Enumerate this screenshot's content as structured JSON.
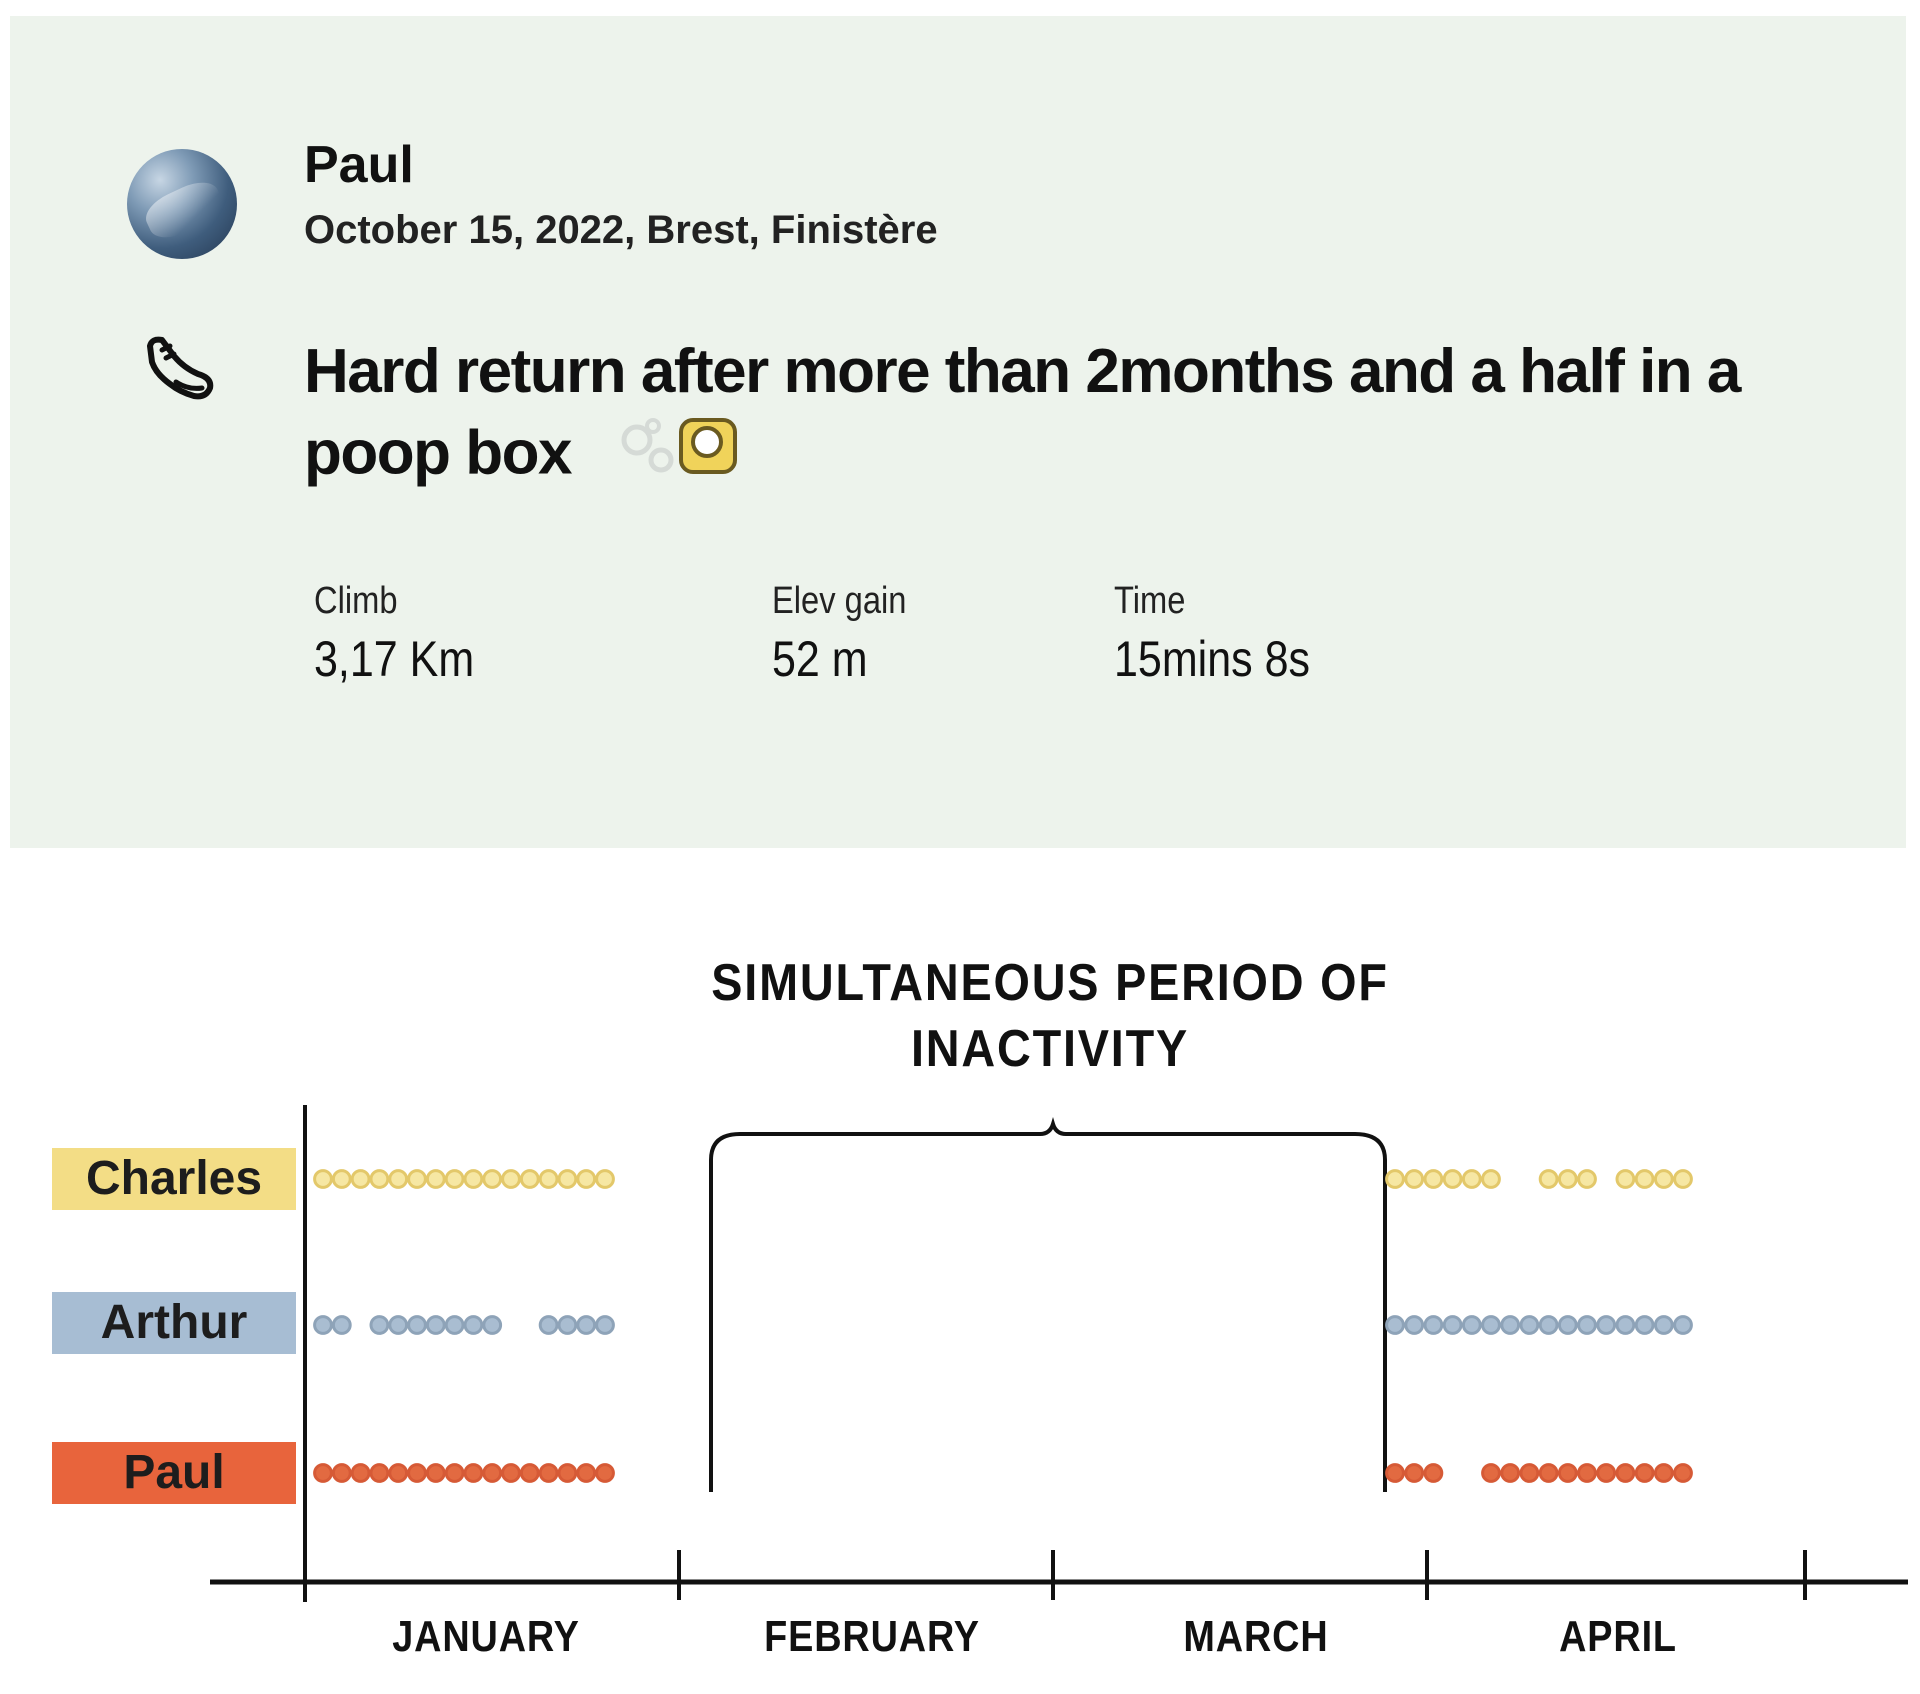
{
  "post": {
    "user_name": "Paul",
    "meta": "October 15, 2022, Brest, Finistère",
    "activity_icon": "running-shoe-icon",
    "title": "Hard return after more than 2months and a half in a poop box",
    "stats": [
      {
        "label": "Climb",
        "value": "3,17 Km"
      },
      {
        "label": "Elev gain",
        "value": "52 m"
      },
      {
        "label": "Time",
        "value": "15mins 8s"
      }
    ]
  },
  "chart_data": {
    "type": "timeline",
    "title": "SIMULTANEOUS PERIOD OF INACTIVITY",
    "categories": [
      "JANUARY",
      "FEBRUARY",
      "MARCH",
      "APRIL"
    ],
    "series": [
      {
        "name": "Charles",
        "color": "#e3c86a",
        "fill": "#f6e7a3",
        "runs": [
          [
            0,
            15
          ],
          [
            16,
            21
          ],
          [
            24,
            26
          ],
          [
            28,
            31
          ]
        ]
      },
      {
        "name": "Arthur",
        "color": "#8ea3b8",
        "fill": "#a9bdd1",
        "runs": [
          [
            0,
            1
          ],
          [
            3,
            9
          ],
          [
            12,
            15
          ],
          [
            16,
            31
          ]
        ]
      },
      {
        "name": "Paul",
        "color": "#d65a36",
        "fill": "#e26a41",
        "runs": [
          [
            0,
            15
          ],
          [
            16,
            18
          ],
          [
            21,
            31
          ]
        ]
      }
    ],
    "inactivity_label_span": [
      "FEBRUARY",
      "MARCH"
    ]
  }
}
